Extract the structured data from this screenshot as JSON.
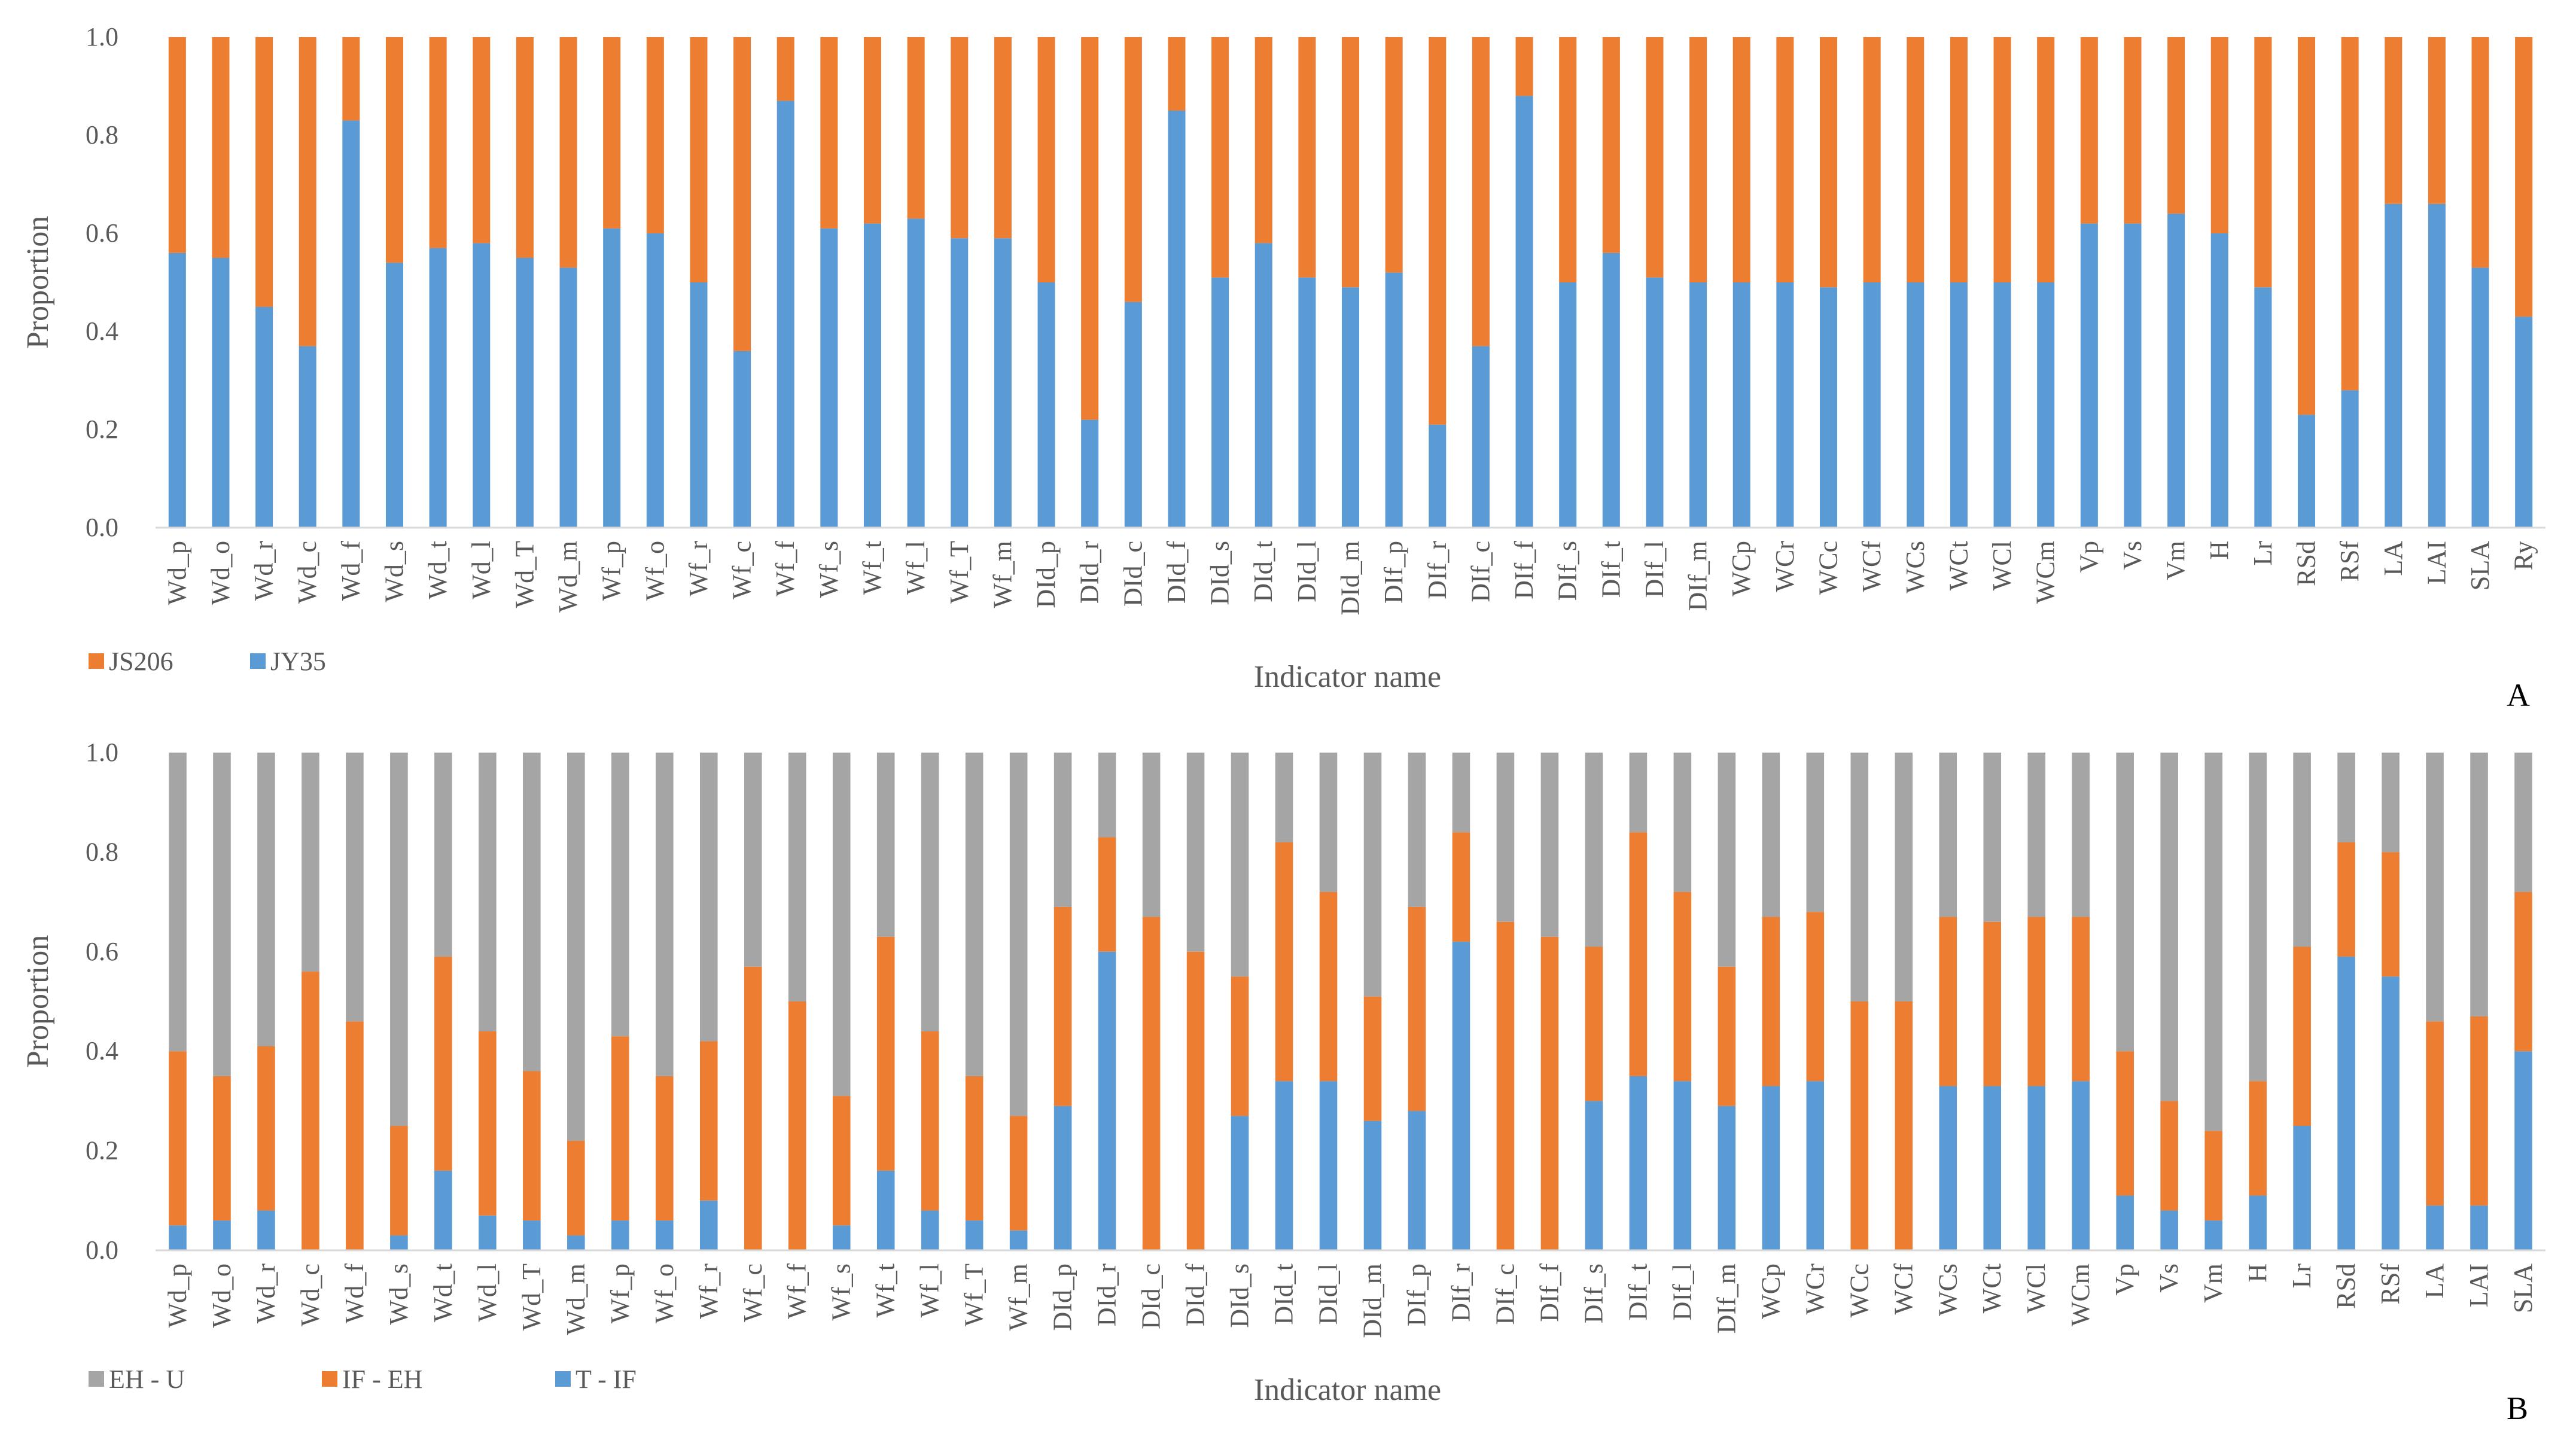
{
  "chart_data": [
    {
      "id": "A",
      "panel_label": "A",
      "type": "bar",
      "stacked": true,
      "title": "",
      "xlabel": "Indicator name",
      "ylabel": "Proportion",
      "ylim": [
        0,
        1
      ],
      "yticks": [
        "0.0",
        "0.2",
        "0.4",
        "0.6",
        "0.8",
        "1.0"
      ],
      "legend_position": "bottom-left",
      "categories": [
        "Wd_p",
        "Wd_o",
        "Wd_r",
        "Wd_c",
        "Wd_f",
        "Wd_s",
        "Wd_t",
        "Wd_l",
        "Wd_T",
        "Wd_m",
        "Wf_p",
        "Wf_o",
        "Wf_r",
        "Wf_c",
        "Wf_f",
        "Wf_s",
        "Wf_t",
        "Wf_l",
        "Wf_T",
        "Wf_m",
        "DId_p",
        "DId_r",
        "DId_c",
        "DId_f",
        "DId_s",
        "DId_t",
        "DId_l",
        "DId_m",
        "DIf_p",
        "DIf_r",
        "DIf_c",
        "DIf_f",
        "DIf_s",
        "DIf_t",
        "DIf_l",
        "DIf_m",
        "WCp",
        "WCr",
        "WCc",
        "WCf",
        "WCs",
        "WCt",
        "WCl",
        "WCm",
        "Vp",
        "Vs",
        "Vm",
        "H",
        "Lr",
        "RSd",
        "RSf",
        "LA",
        "LAI",
        "SLA",
        "Ry"
      ],
      "series": [
        {
          "name": "JY35",
          "color": "#5B9BD5",
          "values": [
            0.56,
            0.55,
            0.45,
            0.37,
            0.83,
            0.54,
            0.57,
            0.58,
            0.55,
            0.53,
            0.61,
            0.6,
            0.5,
            0.36,
            0.87,
            0.61,
            0.62,
            0.63,
            0.59,
            0.59,
            0.5,
            0.22,
            0.46,
            0.85,
            0.51,
            0.58,
            0.51,
            0.49,
            0.52,
            0.21,
            0.37,
            0.88,
            0.5,
            0.56,
            0.51,
            0.5,
            0.5,
            0.5,
            0.49,
            0.5,
            0.5,
            0.5,
            0.5,
            0.5,
            0.62,
            0.62,
            0.64,
            0.6,
            0.49,
            0.23,
            0.28,
            0.66,
            0.66,
            0.53,
            0.43
          ]
        },
        {
          "name": "JS206",
          "color": "#ED7D31",
          "values": [
            0.44,
            0.45,
            0.55,
            0.63,
            0.17,
            0.46,
            0.43,
            0.42,
            0.45,
            0.47,
            0.39,
            0.4,
            0.5,
            0.64,
            0.13,
            0.39,
            0.38,
            0.37,
            0.41,
            0.41,
            0.5,
            0.78,
            0.54,
            0.15,
            0.49,
            0.42,
            0.49,
            0.51,
            0.48,
            0.79,
            0.63,
            0.12,
            0.5,
            0.44,
            0.49,
            0.5,
            0.5,
            0.5,
            0.51,
            0.5,
            0.5,
            0.5,
            0.5,
            0.5,
            0.38,
            0.38,
            0.36,
            0.4,
            0.51,
            0.77,
            0.72,
            0.34,
            0.34,
            0.47,
            0.57
          ]
        }
      ],
      "legend_order": [
        "JS206",
        "JY35"
      ]
    },
    {
      "id": "B",
      "panel_label": "B",
      "type": "bar",
      "stacked": true,
      "title": "",
      "xlabel": "Indicator name",
      "ylabel": "Proportion",
      "ylim": [
        0,
        1
      ],
      "yticks": [
        "0.0",
        "0.2",
        "0.4",
        "0.6",
        "0.8",
        "1.0"
      ],
      "legend_position": "bottom-left",
      "categories": [
        "Wd_p",
        "Wd_o",
        "Wd_r",
        "Wd_c",
        "Wd_f",
        "Wd_s",
        "Wd_t",
        "Wd_l",
        "Wd_T",
        "Wd_m",
        "Wf_p",
        "Wf_o",
        "Wf_r",
        "Wf_c",
        "Wf_f",
        "Wf_s",
        "Wf_t",
        "Wf_l",
        "Wf_T",
        "Wf_m",
        "DId_p",
        "DId_r",
        "DId_c",
        "DId_f",
        "DId_s",
        "DId_t",
        "DId_l",
        "DId_m",
        "DIf_p",
        "DIf_r",
        "DIf_c",
        "DIf_f",
        "DIf_s",
        "DIf_t",
        "DIf_l",
        "DIf_m",
        "WCp",
        "WCr",
        "WCc",
        "WCf",
        "WCs",
        "WCt",
        "WCl",
        "WCm",
        "Vp",
        "Vs",
        "Vm",
        "H",
        "Lr",
        "RSd",
        "RSf",
        "LA",
        "LAI",
        "SLA"
      ],
      "series": [
        {
          "name": "T - IF",
          "color": "#5B9BD5",
          "values": [
            0.05,
            0.06,
            0.08,
            0.0,
            0.0,
            0.03,
            0.16,
            0.07,
            0.06,
            0.03,
            0.06,
            0.06,
            0.1,
            0.0,
            0.0,
            0.05,
            0.16,
            0.08,
            0.06,
            0.04,
            0.29,
            0.6,
            0.0,
            0.0,
            0.27,
            0.34,
            0.34,
            0.26,
            0.28,
            0.62,
            0.0,
            0.0,
            0.3,
            0.35,
            0.34,
            0.29,
            0.33,
            0.34,
            0.0,
            0.0,
            0.33,
            0.33,
            0.33,
            0.34,
            0.11,
            0.08,
            0.06,
            0.11,
            0.25,
            0.59,
            0.55,
            0.09,
            0.09,
            0.4
          ]
        },
        {
          "name": "IF - EH",
          "color": "#ED7D31",
          "values": [
            0.35,
            0.29,
            0.33,
            0.56,
            0.46,
            0.22,
            0.43,
            0.37,
            0.3,
            0.19,
            0.37,
            0.29,
            0.32,
            0.57,
            0.5,
            0.26,
            0.47,
            0.36,
            0.29,
            0.23,
            0.4,
            0.23,
            0.67,
            0.6,
            0.28,
            0.48,
            0.38,
            0.25,
            0.41,
            0.22,
            0.66,
            0.63,
            0.31,
            0.49,
            0.38,
            0.28,
            0.34,
            0.34,
            0.5,
            0.5,
            0.34,
            0.33,
            0.34,
            0.33,
            0.29,
            0.22,
            0.18,
            0.23,
            0.36,
            0.23,
            0.25,
            0.37,
            0.38,
            0.32
          ]
        },
        {
          "name": "EH - U",
          "color": "#A5A5A5",
          "values": [
            0.6,
            0.65,
            0.59,
            0.44,
            0.54,
            0.75,
            0.41,
            0.56,
            0.64,
            0.78,
            0.57,
            0.65,
            0.58,
            0.43,
            0.5,
            0.69,
            0.37,
            0.56,
            0.65,
            0.73,
            0.31,
            0.17,
            0.33,
            0.4,
            0.45,
            0.18,
            0.28,
            0.49,
            0.31,
            0.16,
            0.34,
            0.37,
            0.39,
            0.16,
            0.28,
            0.43,
            0.33,
            0.32,
            0.5,
            0.5,
            0.33,
            0.34,
            0.33,
            0.33,
            0.6,
            0.7,
            0.76,
            0.66,
            0.39,
            0.18,
            0.2,
            0.54,
            0.53,
            0.28
          ]
        }
      ],
      "legend_order": [
        "EH - U",
        "IF - EH",
        "T - IF"
      ]
    }
  ]
}
